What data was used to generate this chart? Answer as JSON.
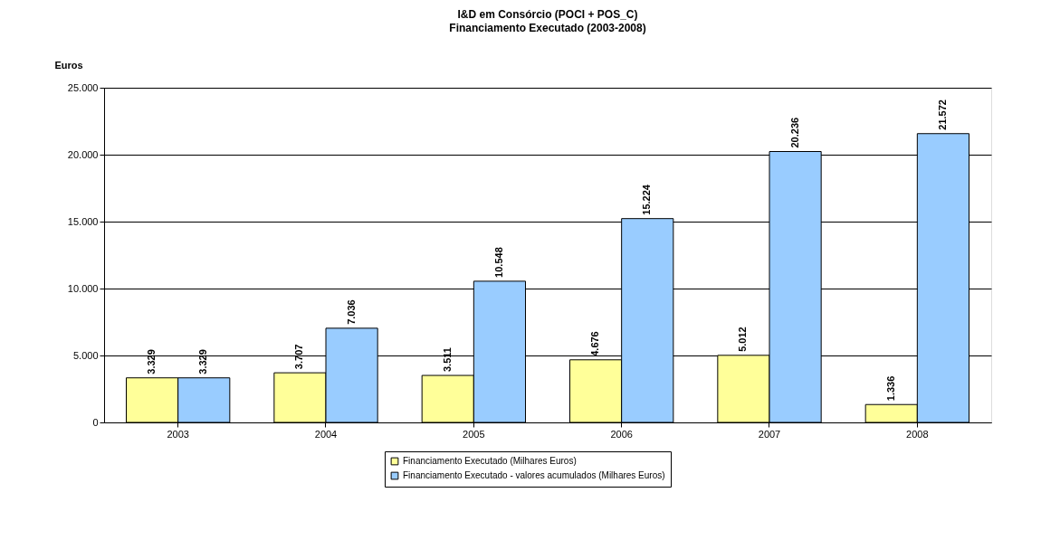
{
  "chart_data": {
    "type": "bar",
    "title": "I&D em Consórcio (POCI + POS_C)",
    "subtitle": "Financiamento Executado (2003-2008)",
    "ylabel": "Euros",
    "categories": [
      "2003",
      "2004",
      "2005",
      "2006",
      "2007",
      "2008"
    ],
    "series": [
      {
        "name": "Financiamento Executado (Milhares Euros)",
        "color": "#ffff99",
        "values": [
          3329,
          3707,
          3511,
          4676,
          5012,
          1336
        ],
        "value_labels": [
          "3.329",
          "3.707",
          "3.511",
          "4.676",
          "5.012",
          "1.336"
        ]
      },
      {
        "name": "Financiamento Executado - valores acumulados (Milhares Euros)",
        "color": "#99ccff",
        "values": [
          3329,
          7036,
          10548,
          15224,
          20236,
          21572
        ],
        "value_labels": [
          "3.329",
          "7.036",
          "10.548",
          "15.224",
          "20.236",
          "21.572"
        ]
      }
    ],
    "ylim": [
      0,
      25000
    ],
    "yticks": [
      {
        "value": 0,
        "label": "0"
      },
      {
        "value": 5000,
        "label": "5.000"
      },
      {
        "value": 10000,
        "label": "10.000"
      },
      {
        "value": 15000,
        "label": "15.000"
      },
      {
        "value": 20000,
        "label": "20.000"
      },
      {
        "value": 25000,
        "label": "25.000"
      }
    ],
    "grid": "y",
    "legend": "bottom"
  }
}
